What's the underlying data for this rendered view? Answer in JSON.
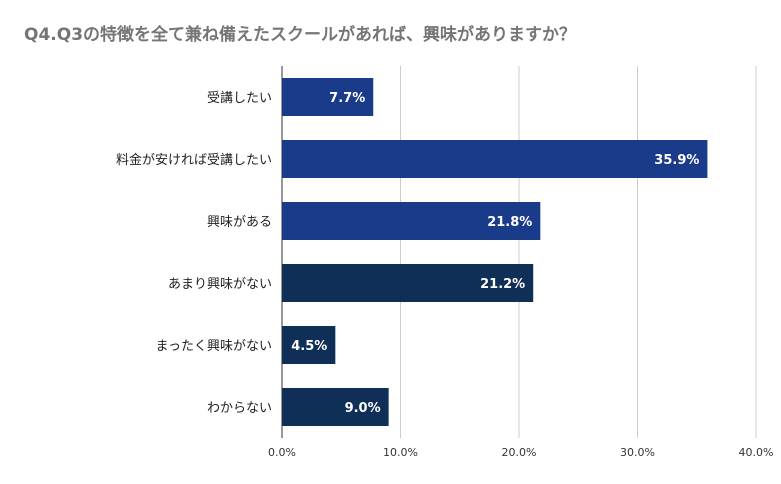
{
  "chart_data": {
    "type": "bar",
    "orientation": "horizontal",
    "title": "Q4.Q3の特徴を全て兼ね備えたスクールがあれば、興味がありますか？",
    "categories": [
      "受講したい",
      "料金が安ければ受講したい",
      "興味がある",
      "あまり興味がない",
      "まったく興味がない",
      "わからない"
    ],
    "values": [
      7.7,
      35.9,
      21.8,
      21.2,
      4.5,
      9.0
    ],
    "data_labels": [
      "7.7%",
      "35.9%",
      "21.8%",
      "21.2%",
      "4.5%",
      "9.0%"
    ],
    "bar_colors": [
      "#1a3a8a",
      "#1a3a8a",
      "#1a3a8a",
      "#0f2f56",
      "#0f2f56",
      "#0f2f56"
    ],
    "xlim": [
      0,
      40
    ],
    "xticks": [
      0,
      10,
      20,
      30,
      40
    ],
    "xtick_labels": [
      "0.0%",
      "10.0%",
      "20.0%",
      "30.0%",
      "40.0%"
    ],
    "grid": true,
    "xlabel": "",
    "ylabel": ""
  }
}
